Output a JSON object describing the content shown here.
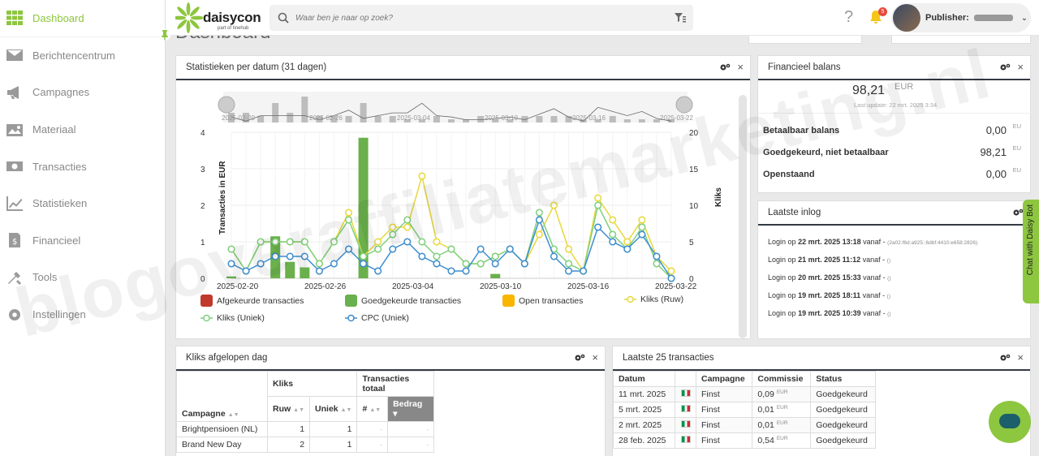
{
  "sidebar": {
    "items": [
      {
        "label": "Dashboard",
        "icon": "grid-icon"
      },
      {
        "label": "Berichtencentrum",
        "icon": "envelope-icon"
      },
      {
        "label": "Campagnes",
        "icon": "megaphone-icon"
      },
      {
        "label": "Materiaal",
        "icon": "image-icon"
      },
      {
        "label": "Transacties",
        "icon": "money-icon"
      },
      {
        "label": "Statistieken",
        "icon": "chart-line-icon"
      },
      {
        "label": "Financieel",
        "icon": "invoice-icon"
      },
      {
        "label": "Tools",
        "icon": "tools-icon"
      },
      {
        "label": "Instellingen",
        "icon": "gear-icon"
      }
    ]
  },
  "topbar": {
    "logo_text": "daisycon",
    "logo_sub": "part of tinehub",
    "search_placeholder": "Waar ben je naar op zoek?",
    "notification_count": "5",
    "user_label": "Publisher:",
    "chevron": "⌄"
  },
  "page": {
    "title": "Dashboard"
  },
  "stats_panel": {
    "title": "Statistieken per datum (31 dagen)"
  },
  "chart_data": {
    "type": "bar",
    "title": "",
    "x_ticks": [
      "2025-02-20",
      "2025-02-26",
      "2025-03-04",
      "2025-03-10",
      "2025-03-16",
      "2025-03-22"
    ],
    "navigator_ticks": [
      "2025-02-20",
      "2025-02-26",
      "2025-03-04",
      "2025-03-10",
      "2025-03-16",
      "2025-03-22"
    ],
    "ylabel_left": "Transacties in EUR",
    "ylabel_right": "Kliks",
    "ylim_left": [
      0,
      4
    ],
    "ylim_right": [
      0,
      20
    ],
    "y_ticks_left": [
      "0",
      "1",
      "2",
      "3",
      "4"
    ],
    "y_ticks_right": [
      "0",
      "5",
      "10",
      "15",
      "20"
    ],
    "grid": true,
    "legend_position": "bottom",
    "days": 31,
    "bar_series": [
      {
        "name": "Afgekeurde transacties",
        "color": "#c0392b",
        "values": [
          0,
          0,
          0,
          0,
          0,
          0,
          0,
          0,
          0,
          0,
          0,
          0,
          0,
          0,
          0,
          0,
          0,
          0,
          0,
          0,
          0,
          0,
          0,
          0,
          0,
          0,
          0,
          0,
          0,
          0,
          0
        ]
      },
      {
        "name": "Goedgekeurde transacties",
        "color": "#6ab04c",
        "values": [
          0.05,
          0,
          0,
          1.15,
          0.45,
          0.3,
          0,
          0,
          0,
          3.85,
          0,
          0,
          0,
          0,
          0,
          0,
          0,
          0,
          0.12,
          0,
          0,
          0,
          0,
          0,
          0,
          0,
          0,
          0,
          0,
          0,
          0
        ]
      },
      {
        "name": "Open transacties",
        "color": "#f9b500",
        "values": [
          0,
          0,
          0,
          0,
          0,
          0,
          0,
          0,
          0,
          0,
          0,
          0,
          0,
          0,
          0,
          0,
          0,
          0,
          0,
          0,
          0,
          0,
          0,
          0,
          0,
          0,
          0,
          0,
          0,
          0,
          0
        ]
      }
    ],
    "line_series": [
      {
        "name": "Kliks (Ruw)",
        "color": "#e8d83a",
        "values": [
          4,
          1,
          5,
          5,
          5,
          5,
          2,
          5,
          9,
          3,
          5,
          7,
          7,
          14,
          5,
          4,
          2,
          2,
          3,
          4,
          2,
          6,
          10,
          4,
          1,
          11,
          8,
          5,
          8,
          3,
          1
        ]
      },
      {
        "name": "Kliks (Uniek)",
        "color": "#7ed07e",
        "values": [
          4,
          1,
          5,
          5,
          5,
          5,
          2,
          5,
          8,
          3,
          4,
          6,
          8,
          5,
          3,
          4,
          2,
          2,
          3,
          4,
          2,
          9,
          4,
          2,
          1,
          10,
          6,
          4,
          7,
          2,
          0
        ]
      },
      {
        "name": "CPC (Uniek)",
        "color": "#3c8dd0",
        "values": [
          2,
          1,
          2,
          3,
          3,
          3,
          1,
          2,
          4,
          2,
          1,
          4,
          5,
          3,
          2,
          1,
          1,
          4,
          2,
          4,
          2,
          8,
          3,
          1,
          1,
          7,
          5,
          4,
          6,
          3,
          0
        ]
      }
    ],
    "navigator_values": [
      3,
      3,
      2,
      6,
      3,
      8,
      2,
      2,
      2,
      6,
      2,
      2,
      1,
      1,
      2,
      1,
      1,
      2,
      1,
      1,
      2,
      2,
      2,
      2,
      1,
      1,
      2,
      1,
      1,
      1,
      1
    ]
  },
  "fin_panel": {
    "title": "Financieel balans",
    "total": "98,21",
    "currency": "EUR",
    "last_update": "Last update: 22 mrt. 2025 3:34",
    "rows": [
      {
        "label": "Betaalbaar balans",
        "value": "0,00",
        "unit": "EU"
      },
      {
        "label": "Goedgekeurd, niet betaalbaar",
        "value": "98,21",
        "unit": "EU"
      },
      {
        "label": "Openstaand",
        "value": "0,00",
        "unit": "EU"
      }
    ]
  },
  "login_panel": {
    "title": "Laatste inlog",
    "rows": [
      {
        "prefix": "Login op",
        "date": "22 mrt. 2025 13:18",
        "suffix": "vanaf -",
        "ip": "(2a02:f6d:a925::6dbf:4410:e658:2826)"
      },
      {
        "prefix": "Login op",
        "date": "21 mrt. 2025 11:12",
        "suffix": "vanaf -",
        "ip": "()"
      },
      {
        "prefix": "Login op",
        "date": "20 mrt. 2025 15:33",
        "suffix": "vanaf -",
        "ip": "()"
      },
      {
        "prefix": "Login op",
        "date": "19 mrt. 2025 18:11",
        "suffix": "vanaf -",
        "ip": "()"
      },
      {
        "prefix": "Login op",
        "date": "19 mrt. 2025 10:39",
        "suffix": "vanaf -",
        "ip": "()"
      }
    ]
  },
  "clicks_panel": {
    "title": "Kliks afgelopen dag",
    "headers": {
      "kliks": "Kliks",
      "transacties": "Transacties totaal",
      "campagne": "Campagne",
      "ruw": "Ruw",
      "uniek": "Uniek",
      "count": "#",
      "bedrag": "Bedrag"
    },
    "rows": [
      {
        "campagne": "Brightpensioen (NL)",
        "ruw": "1",
        "uniek": "1",
        "count": "-",
        "bedrag": "-"
      },
      {
        "campagne": "Brand New Day",
        "ruw": "2",
        "uniek": "1",
        "count": "-",
        "bedrag": "-"
      }
    ]
  },
  "tx_panel": {
    "title": "Laatste 25 transacties",
    "headers": {
      "datum": "Datum",
      "campagne": "Campagne",
      "commissie": "Commissie",
      "status": "Status"
    },
    "rows": [
      {
        "datum": "11 mrt. 2025",
        "campagne": "Finst",
        "commissie": "0,09",
        "unit": "EUR",
        "status": "Goedgekeurd"
      },
      {
        "datum": "5 mrt. 2025",
        "campagne": "Finst",
        "commissie": "0,01",
        "unit": "EUR",
        "status": "Goedgekeurd"
      },
      {
        "datum": "2 mrt. 2025",
        "campagne": "Finst",
        "commissie": "0,01",
        "unit": "EUR",
        "status": "Goedgekeurd"
      },
      {
        "datum": "28 feb. 2025",
        "campagne": "Finst",
        "commissie": "0,54",
        "unit": "EUR",
        "status": "Goedgekeurd"
      }
    ]
  },
  "chatbot": {
    "label": "Chat with Daisy Bot"
  },
  "watermark": "blogoveraffiliatemarketing.nl",
  "colors": {
    "accent": "#8dc63f",
    "header_rule": "#333a44"
  }
}
